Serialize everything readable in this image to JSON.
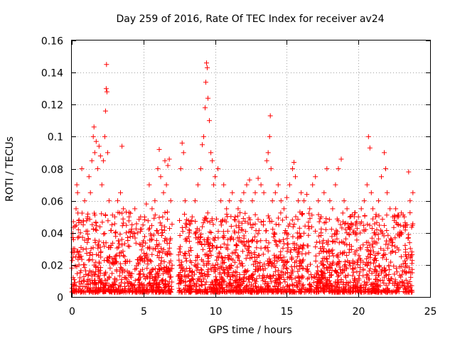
{
  "chart_data": {
    "type": "scatter",
    "title": "Day 259 of 2016, Rate Of TEC Index for receiver av24",
    "xlabel": "GPS time / hours",
    "ylabel": "ROTI / TECUs",
    "xlim": [
      0,
      25
    ],
    "ylim": [
      0,
      0.16
    ],
    "xticks": [
      0,
      5,
      10,
      15,
      20,
      25
    ],
    "xtick_labels": [
      "0",
      "5",
      "10",
      "15",
      "20",
      "25"
    ],
    "yticks": [
      0,
      0.02,
      0.04,
      0.06,
      0.08,
      0.1,
      0.12,
      0.14,
      0.16
    ],
    "ytick_labels": [
      "0",
      "0.02",
      "0.04",
      "0.06",
      "0.08",
      "0.1",
      "0.12",
      "0.14",
      "0.16"
    ],
    "grid": true,
    "marker": "+",
    "marker_color": "#ff0000",
    "data_gap_hours": [
      7.0,
      7.4
    ],
    "series": [
      {
        "name": "ROTI",
        "points": [
          [
            0.1,
            0.012
          ],
          [
            0.2,
            0.03
          ],
          [
            0.3,
            0.055
          ],
          [
            0.35,
            0.07
          ],
          [
            0.4,
            0.065
          ],
          [
            0.5,
            0.02
          ],
          [
            0.6,
            0.04
          ],
          [
            0.7,
            0.08
          ],
          [
            0.8,
            0.045
          ],
          [
            0.9,
            0.06
          ],
          [
            1.0,
            0.03
          ],
          [
            1.1,
            0.05
          ],
          [
            1.2,
            0.075
          ],
          [
            1.3,
            0.065
          ],
          [
            1.4,
            0.085
          ],
          [
            1.5,
            0.1
          ],
          [
            1.55,
            0.106
          ],
          [
            1.6,
            0.09
          ],
          [
            1.7,
            0.097
          ],
          [
            1.8,
            0.08
          ],
          [
            1.9,
            0.094
          ],
          [
            2.0,
            0.088
          ],
          [
            2.1,
            0.07
          ],
          [
            2.2,
            0.085
          ],
          [
            2.3,
            0.1
          ],
          [
            2.35,
            0.116
          ],
          [
            2.4,
            0.13
          ],
          [
            2.42,
            0.145
          ],
          [
            2.45,
            0.128
          ],
          [
            2.5,
            0.09
          ],
          [
            2.6,
            0.06
          ],
          [
            2.8,
            0.045
          ],
          [
            3.0,
            0.05
          ],
          [
            3.2,
            0.06
          ],
          [
            3.4,
            0.065
          ],
          [
            3.5,
            0.094
          ],
          [
            3.6,
            0.055
          ],
          [
            3.8,
            0.04
          ],
          [
            4.0,
            0.05
          ],
          [
            4.2,
            0.045
          ],
          [
            4.4,
            0.055
          ],
          [
            4.6,
            0.04
          ],
          [
            4.8,
            0.05
          ],
          [
            5.0,
            0.035
          ],
          [
            5.2,
            0.058
          ],
          [
            5.4,
            0.07
          ],
          [
            5.6,
            0.055
          ],
          [
            5.8,
            0.06
          ],
          [
            6.0,
            0.08
          ],
          [
            6.1,
            0.092
          ],
          [
            6.2,
            0.075
          ],
          [
            6.4,
            0.065
          ],
          [
            6.5,
            0.085
          ],
          [
            6.6,
            0.07
          ],
          [
            6.7,
            0.082
          ],
          [
            6.8,
            0.086
          ],
          [
            6.9,
            0.06
          ],
          [
            7.5,
            0.03
          ],
          [
            7.6,
            0.08
          ],
          [
            7.7,
            0.096
          ],
          [
            7.8,
            0.09
          ],
          [
            7.9,
            0.06
          ],
          [
            8.0,
            0.045
          ],
          [
            8.2,
            0.04
          ],
          [
            8.4,
            0.05
          ],
          [
            8.6,
            0.06
          ],
          [
            8.8,
            0.07
          ],
          [
            9.0,
            0.08
          ],
          [
            9.1,
            0.095
          ],
          [
            9.2,
            0.1
          ],
          [
            9.3,
            0.118
          ],
          [
            9.35,
            0.134
          ],
          [
            9.4,
            0.146
          ],
          [
            9.45,
            0.143
          ],
          [
            9.5,
            0.124
          ],
          [
            9.6,
            0.11
          ],
          [
            9.7,
            0.09
          ],
          [
            9.8,
            0.085
          ],
          [
            9.9,
            0.07
          ],
          [
            10.0,
            0.075
          ],
          [
            10.2,
            0.08
          ],
          [
            10.4,
            0.06
          ],
          [
            10.6,
            0.07
          ],
          [
            10.8,
            0.055
          ],
          [
            11.0,
            0.06
          ],
          [
            11.2,
            0.065
          ],
          [
            11.4,
            0.05
          ],
          [
            11.6,
            0.055
          ],
          [
            11.8,
            0.06
          ],
          [
            12.0,
            0.065
          ],
          [
            12.2,
            0.07
          ],
          [
            12.4,
            0.073
          ],
          [
            12.6,
            0.06
          ],
          [
            12.8,
            0.065
          ],
          [
            13.0,
            0.074
          ],
          [
            13.2,
            0.07
          ],
          [
            13.4,
            0.065
          ],
          [
            13.6,
            0.085
          ],
          [
            13.7,
            0.09
          ],
          [
            13.8,
            0.1
          ],
          [
            13.85,
            0.113
          ],
          [
            13.9,
            0.08
          ],
          [
            14.0,
            0.06
          ],
          [
            14.2,
            0.065
          ],
          [
            14.4,
            0.07
          ],
          [
            14.6,
            0.06
          ],
          [
            14.8,
            0.055
          ],
          [
            15.0,
            0.062
          ],
          [
            15.2,
            0.07
          ],
          [
            15.4,
            0.08
          ],
          [
            15.5,
            0.084
          ],
          [
            15.6,
            0.075
          ],
          [
            15.8,
            0.06
          ],
          [
            16.0,
            0.065
          ],
          [
            16.2,
            0.06
          ],
          [
            16.4,
            0.064
          ],
          [
            16.6,
            0.055
          ],
          [
            16.8,
            0.07
          ],
          [
            17.0,
            0.075
          ],
          [
            17.2,
            0.06
          ],
          [
            17.4,
            0.05
          ],
          [
            17.6,
            0.065
          ],
          [
            17.8,
            0.08
          ],
          [
            18.0,
            0.06
          ],
          [
            18.2,
            0.055
          ],
          [
            18.4,
            0.07
          ],
          [
            18.6,
            0.08
          ],
          [
            18.8,
            0.086
          ],
          [
            19.0,
            0.06
          ],
          [
            19.2,
            0.055
          ],
          [
            19.4,
            0.05
          ],
          [
            19.6,
            0.045
          ],
          [
            19.8,
            0.04
          ],
          [
            20.0,
            0.05
          ],
          [
            20.2,
            0.055
          ],
          [
            20.4,
            0.06
          ],
          [
            20.6,
            0.07
          ],
          [
            20.7,
            0.1
          ],
          [
            20.8,
            0.093
          ],
          [
            20.9,
            0.065
          ],
          [
            21.0,
            0.055
          ],
          [
            21.2,
            0.05
          ],
          [
            21.4,
            0.06
          ],
          [
            21.6,
            0.075
          ],
          [
            21.8,
            0.09
          ],
          [
            21.9,
            0.08
          ],
          [
            22.0,
            0.065
          ],
          [
            22.2,
            0.055
          ],
          [
            22.4,
            0.05
          ],
          [
            22.6,
            0.055
          ],
          [
            22.8,
            0.045
          ],
          [
            23.0,
            0.04
          ],
          [
            23.2,
            0.05
          ],
          [
            23.4,
            0.045
          ],
          [
            23.5,
            0.078
          ],
          [
            23.6,
            0.06
          ],
          [
            23.8,
            0.065
          ]
        ]
      }
    ]
  }
}
